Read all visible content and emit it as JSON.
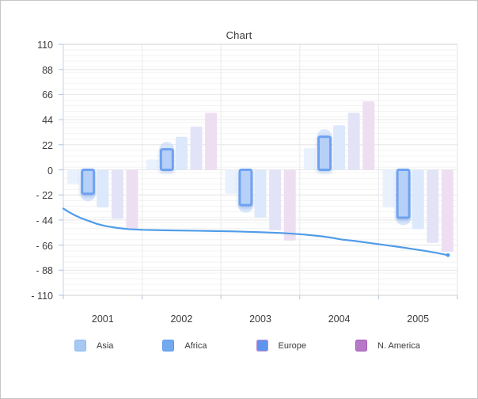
{
  "chart": {
    "title": "Chart",
    "y_axis": {
      "tick_labels": [
        "110",
        "88",
        "66",
        "44",
        "22",
        "0",
        "- 22",
        "- 44",
        "- 66",
        "- 88",
        "- 110"
      ]
    },
    "x_axis": {
      "tick_labels": [
        "2001",
        "2002",
        "2003",
        "2004",
        "2005"
      ]
    },
    "legend": [
      {
        "key": "asia",
        "label": "Asia",
        "fill": "#A6C8F1",
        "border": "#8FB9EF"
      },
      {
        "key": "africa",
        "label": "Africa",
        "fill": "#73A9EF",
        "border": "#5E9AEC"
      },
      {
        "key": "europe",
        "label": "Europe",
        "fill": "#5E94ED",
        "border": "#C08CCF"
      },
      {
        "key": "n-america",
        "label": "N. America",
        "fill": "#B679C7",
        "border": "#A85ABB"
      }
    ]
  },
  "chart_data": {
    "type": "bar",
    "subtype": "grouped-bars-with-line-overlay",
    "title": "Chart",
    "categories": [
      "2001",
      "2002",
      "2003",
      "2004",
      "2005"
    ],
    "ylim": [
      -110,
      110
    ],
    "y_ticks": [
      110,
      88,
      66,
      44,
      22,
      0,
      -22,
      -44,
      -66,
      -88,
      -110
    ],
    "grid": true,
    "legend_position": "bottom",
    "series": [
      {
        "key": "asia",
        "name": "Asia",
        "type": "bar",
        "state": "dimmed",
        "color": "#E9F1FD",
        "values": [
          -12,
          9,
          -21,
          19,
          -33
        ]
      },
      {
        "key": "africa",
        "name": "Africa",
        "type": "bar",
        "state": "highlighted",
        "color": "#B7D0F8",
        "border_color": "#6EA2F1",
        "values": [
          -21,
          18,
          -31,
          29,
          -42
        ]
      },
      {
        "key": "europe",
        "name": "Europe",
        "type": "bar",
        "state": "dimmed",
        "color": "#DCE8FB",
        "values": [
          -33,
          29,
          -42,
          39,
          -52
        ]
      },
      {
        "key": "n-america",
        "name": "N. America",
        "type": "bar",
        "state": "dimmed",
        "color": "#E3E3F8",
        "values": [
          -43,
          38,
          -53,
          50,
          -64
        ]
      },
      {
        "key": "series-5",
        "name": "",
        "type": "bar",
        "state": "dimmed",
        "color": "#EDDFF1",
        "values": [
          -52,
          50,
          -62,
          60,
          -72
        ]
      },
      {
        "key": "trend-line",
        "name": "",
        "type": "line",
        "color": "#4F9CE8",
        "points_category_value": [
          [
            0.0,
            -34
          ],
          [
            0.07,
            -37
          ],
          [
            0.15,
            -40
          ],
          [
            0.23,
            -42.5
          ],
          [
            0.33,
            -45
          ],
          [
            0.43,
            -47.5
          ],
          [
            0.55,
            -49.5
          ],
          [
            0.69,
            -51
          ],
          [
            0.83,
            -52
          ],
          [
            1.01,
            -52.6
          ],
          [
            1.27,
            -53
          ],
          [
            1.57,
            -53.3
          ],
          [
            1.87,
            -53.6
          ],
          [
            2.17,
            -54
          ],
          [
            2.47,
            -54.6
          ],
          [
            2.77,
            -55.4
          ],
          [
            3.02,
            -56.5
          ],
          [
            3.27,
            -58.2
          ],
          [
            3.42,
            -59.7
          ],
          [
            3.54,
            -61.2
          ],
          [
            3.69,
            -62.3
          ],
          [
            3.85,
            -63.8
          ],
          [
            4.0,
            -65.2
          ],
          [
            4.15,
            -66.6
          ],
          [
            4.3,
            -68
          ],
          [
            4.45,
            -69.6
          ],
          [
            4.6,
            -71.2
          ],
          [
            4.75,
            -73
          ],
          [
            4.88,
            -74.8
          ]
        ]
      }
    ]
  }
}
